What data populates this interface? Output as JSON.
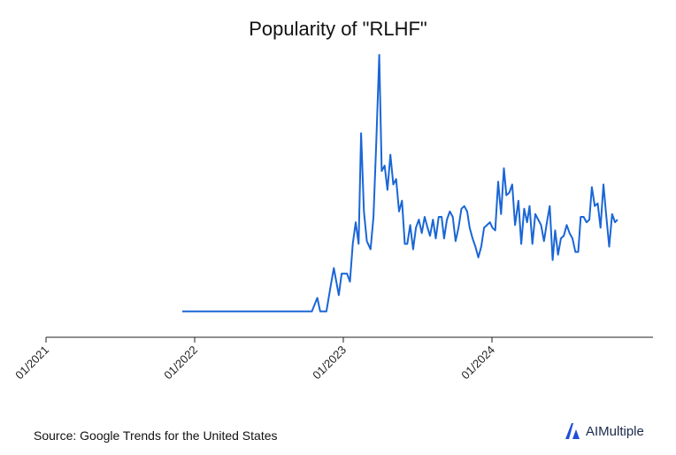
{
  "chart_data": {
    "type": "line",
    "title": "Popularity of \"RLHF\"",
    "xlabel": "",
    "ylabel": "",
    "x_ticks": [
      "01/2021",
      "01/2022",
      "01/2023",
      "01/2024"
    ],
    "x_range": [
      "2021-01",
      "2025-02"
    ],
    "ylim": [
      0,
      100
    ],
    "grid": false,
    "line_color": "#1a66d6",
    "series": [
      {
        "points": [
          [
            "2021-12",
            5
          ],
          [
            "2022-01",
            5
          ],
          [
            "2022-03",
            5
          ],
          [
            "2022-05",
            5
          ],
          [
            "2022-07",
            5
          ],
          [
            "2022-09",
            5
          ],
          [
            "2022-10-15",
            5
          ],
          [
            "2022-10-28",
            10
          ],
          [
            "2022-11-05",
            5
          ],
          [
            "2022-11-20",
            5
          ],
          [
            "2022-12-01",
            15
          ],
          [
            "2022-12-08",
            21
          ],
          [
            "2022-12-20",
            11
          ],
          [
            "2022-12-27",
            19
          ],
          [
            "2023-01-10",
            19
          ],
          [
            "2023-01-17",
            16
          ],
          [
            "2023-01-24",
            30
          ],
          [
            "2023-02-01",
            38
          ],
          [
            "2023-02-08",
            30
          ],
          [
            "2023-02-14",
            71
          ],
          [
            "2023-02-21",
            42
          ],
          [
            "2023-02-28",
            31
          ],
          [
            "2023-03-07",
            28
          ],
          [
            "2023-03-14",
            40
          ],
          [
            "2023-03-21",
            68
          ],
          [
            "2023-03-28",
            100
          ],
          [
            "2023-04-04",
            57
          ],
          [
            "2023-04-11",
            59
          ],
          [
            "2023-04-18",
            50
          ],
          [
            "2023-04-25",
            63
          ],
          [
            "2023-05-02",
            52
          ],
          [
            "2023-05-09",
            54
          ],
          [
            "2023-05-16",
            42
          ],
          [
            "2023-05-23",
            46
          ],
          [
            "2023-05-30",
            30
          ],
          [
            "2023-06-06",
            30
          ],
          [
            "2023-06-13",
            37
          ],
          [
            "2023-06-20",
            28
          ],
          [
            "2023-06-27",
            36
          ],
          [
            "2023-07-04",
            39
          ],
          [
            "2023-07-11",
            34
          ],
          [
            "2023-07-18",
            40
          ],
          [
            "2023-07-25",
            36
          ],
          [
            "2023-08-01",
            33
          ],
          [
            "2023-08-08",
            39
          ],
          [
            "2023-08-15",
            32
          ],
          [
            "2023-08-22",
            40
          ],
          [
            "2023-08-29",
            40
          ],
          [
            "2023-09-05",
            32
          ],
          [
            "2023-09-12",
            39
          ],
          [
            "2023-09-19",
            42
          ],
          [
            "2023-09-26",
            40
          ],
          [
            "2023-10-03",
            31
          ],
          [
            "2023-10-10",
            36
          ],
          [
            "2023-10-17",
            43
          ],
          [
            "2023-10-24",
            44
          ],
          [
            "2023-10-31",
            42
          ],
          [
            "2023-11-07",
            36
          ],
          [
            "2023-11-14",
            32
          ],
          [
            "2023-11-21",
            29
          ],
          [
            "2023-11-28",
            25
          ],
          [
            "2023-12-05",
            29
          ],
          [
            "2023-12-12",
            36
          ],
          [
            "2023-12-19",
            37
          ],
          [
            "2023-12-26",
            38
          ],
          [
            "2024-01-02",
            36
          ],
          [
            "2024-01-09",
            35
          ],
          [
            "2024-01-16",
            53
          ],
          [
            "2024-01-23",
            41
          ],
          [
            "2024-01-30",
            58
          ],
          [
            "2024-02-06",
            48
          ],
          [
            "2024-02-13",
            49
          ],
          [
            "2024-02-20",
            52
          ],
          [
            "2024-02-27",
            37
          ],
          [
            "2024-03-05",
            46
          ],
          [
            "2024-03-12",
            30
          ],
          [
            "2024-03-19",
            43
          ],
          [
            "2024-03-26",
            38
          ],
          [
            "2024-04-02",
            44
          ],
          [
            "2024-04-09",
            30
          ],
          [
            "2024-04-16",
            41
          ],
          [
            "2024-04-23",
            39
          ],
          [
            "2024-04-30",
            37
          ],
          [
            "2024-05-07",
            31
          ],
          [
            "2024-05-14",
            38
          ],
          [
            "2024-05-21",
            44
          ],
          [
            "2024-05-28",
            24
          ],
          [
            "2024-06-04",
            35
          ],
          [
            "2024-06-11",
            26
          ],
          [
            "2024-06-18",
            32
          ],
          [
            "2024-06-25",
            33
          ],
          [
            "2024-07-02",
            37
          ],
          [
            "2024-07-09",
            34
          ],
          [
            "2024-07-16",
            32
          ],
          [
            "2024-07-23",
            27
          ],
          [
            "2024-07-30",
            27
          ],
          [
            "2024-08-06",
            40
          ],
          [
            "2024-08-13",
            40
          ],
          [
            "2024-08-20",
            38
          ],
          [
            "2024-08-27",
            39
          ],
          [
            "2024-09-03",
            51
          ],
          [
            "2024-09-10",
            44
          ],
          [
            "2024-09-17",
            45
          ],
          [
            "2024-09-24",
            36
          ],
          [
            "2024-10-01",
            52
          ],
          [
            "2024-10-08",
            40
          ],
          [
            "2024-10-15",
            29
          ],
          [
            "2024-10-22",
            41
          ],
          [
            "2024-10-29",
            38
          ],
          [
            "2024-11-05",
            39
          ]
        ]
      }
    ]
  },
  "source_note": "Source: Google Trends for the United States",
  "brand": {
    "name": "AIMultiple",
    "logo_color": "#1f4fd8",
    "logo_icon": "aimultiple-logo-icon"
  }
}
